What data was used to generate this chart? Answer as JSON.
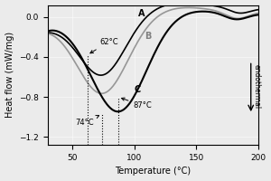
{
  "xlim": [
    30,
    200
  ],
  "ylim": [
    -1.28,
    0.12
  ],
  "xlabel": "Temperature (°C)",
  "ylabel": "Heat flow (mW/mg)",
  "xticks": [
    50,
    100,
    150,
    200
  ],
  "yticks": [
    0.0,
    -0.4,
    -0.8,
    -1.2
  ],
  "curve_A_color": "#000000",
  "curve_B_color": "#888888",
  "curve_C_color": "#000000",
  "label_A": "A",
  "label_B": "B",
  "label_C": "C",
  "ann_62_x": 62,
  "ann_62_y": -0.38,
  "ann_62_text": "62°C",
  "ann_74_x": 74,
  "ann_74_y": -0.97,
  "ann_74_text": "74°C",
  "ann_87_x": 87,
  "ann_87_y": -0.8,
  "ann_87_text": "87°C",
  "bg_color": "#ebebeb",
  "grid_color": "#ffffff"
}
